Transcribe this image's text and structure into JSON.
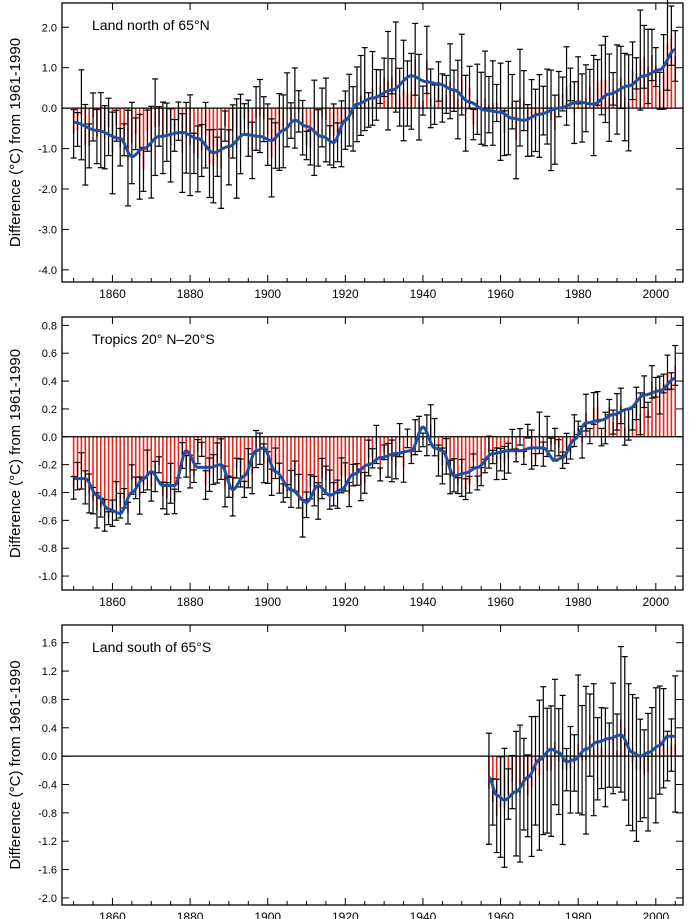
{
  "chart_data": [
    {
      "type": "bar",
      "panel_label": "Land north of 65°N",
      "ylabel": "Difference (°C) from 1961-1990",
      "xlim": [
        1847,
        2007
      ],
      "ylim": [
        -4.3,
        2.6
      ],
      "x_ticks": [
        1860,
        1880,
        1900,
        1920,
        1940,
        1960,
        1980,
        2000
      ],
      "y_ticks": [
        "2.0",
        "1.0",
        "0.0",
        "-1.0",
        "-2.0",
        "-3.0",
        "-4.0"
      ],
      "series": [
        {
          "kind": "annual_bars_with_error",
          "start_year": 1850,
          "end_year": 2005,
          "color": "#e8261c",
          "error_color": "#000000"
        },
        {
          "kind": "smoothed",
          "color": "#1f4fa3",
          "knots": [
            [
              1850,
              -0.35
            ],
            [
              1856,
              -0.55
            ],
            [
              1862,
              -0.75
            ],
            [
              1865,
              -1.2
            ],
            [
              1868,
              -1.0
            ],
            [
              1872,
              -0.7
            ],
            [
              1878,
              -0.6
            ],
            [
              1882,
              -0.75
            ],
            [
              1886,
              -1.1
            ],
            [
              1890,
              -0.95
            ],
            [
              1894,
              -0.65
            ],
            [
              1898,
              -0.7
            ],
            [
              1901,
              -0.8
            ],
            [
              1904,
              -0.55
            ],
            [
              1907,
              -0.3
            ],
            [
              1910,
              -0.45
            ],
            [
              1914,
              -0.7
            ],
            [
              1917,
              -0.85
            ],
            [
              1920,
              -0.3
            ],
            [
              1923,
              0.1
            ],
            [
              1927,
              0.25
            ],
            [
              1932,
              0.45
            ],
            [
              1937,
              0.8
            ],
            [
              1941,
              0.65
            ],
            [
              1944,
              0.6
            ],
            [
              1948,
              0.45
            ],
            [
              1952,
              0.15
            ],
            [
              1956,
              -0.05
            ],
            [
              1960,
              -0.1
            ],
            [
              1963,
              -0.25
            ],
            [
              1966,
              -0.3
            ],
            [
              1970,
              -0.15
            ],
            [
              1975,
              0.0
            ],
            [
              1980,
              0.15
            ],
            [
              1984,
              0.1
            ],
            [
              1988,
              0.35
            ],
            [
              1993,
              0.55
            ],
            [
              1997,
              0.8
            ],
            [
              2001,
              0.95
            ],
            [
              2005,
              1.45
            ]
          ]
        },
        {
          "kind": "zero_line",
          "value": 0
        }
      ]
    },
    {
      "type": "bar",
      "panel_label": "Tropics 20° N–20°S",
      "ylabel": "Difference (°C) from 1961-1990",
      "xlim": [
        1847,
        2007
      ],
      "ylim": [
        -1.1,
        0.86
      ],
      "x_ticks": [
        1860,
        1880,
        1900,
        1920,
        1940,
        1960,
        1980,
        2000
      ],
      "y_ticks": [
        "0.8",
        "0.6",
        "0.4",
        "0.2",
        "0.0",
        "-0.2",
        "-0.4",
        "-0.6",
        "-0.8",
        "-1.0"
      ],
      "series": [
        {
          "kind": "annual_bars_with_error",
          "start_year": 1850,
          "end_year": 2005,
          "color": "#e8261c",
          "error_color": "#000000"
        },
        {
          "kind": "smoothed",
          "color": "#1f4fa3",
          "knots": [
            [
              1850,
              -0.3
            ],
            [
              1853,
              -0.3
            ],
            [
              1856,
              -0.42
            ],
            [
              1859,
              -0.52
            ],
            [
              1862,
              -0.55
            ],
            [
              1865,
              -0.4
            ],
            [
              1868,
              -0.3
            ],
            [
              1870,
              -0.25
            ],
            [
              1873,
              -0.35
            ],
            [
              1876,
              -0.35
            ],
            [
              1879,
              -0.1
            ],
            [
              1882,
              -0.22
            ],
            [
              1885,
              -0.22
            ],
            [
              1888,
              -0.2
            ],
            [
              1891,
              -0.38
            ],
            [
              1894,
              -0.28
            ],
            [
              1897,
              -0.1
            ],
            [
              1899,
              -0.08
            ],
            [
              1902,
              -0.25
            ],
            [
              1906,
              -0.38
            ],
            [
              1910,
              -0.47
            ],
            [
              1913,
              -0.35
            ],
            [
              1916,
              -0.42
            ],
            [
              1919,
              -0.38
            ],
            [
              1922,
              -0.27
            ],
            [
              1926,
              -0.2
            ],
            [
              1929,
              -0.15
            ],
            [
              1933,
              -0.12
            ],
            [
              1937,
              -0.1
            ],
            [
              1940,
              0.07
            ],
            [
              1943,
              -0.08
            ],
            [
              1945,
              -0.1
            ],
            [
              1948,
              -0.28
            ],
            [
              1951,
              -0.26
            ],
            [
              1954,
              -0.22
            ],
            [
              1958,
              -0.12
            ],
            [
              1962,
              -0.1
            ],
            [
              1965,
              -0.1
            ],
            [
              1968,
              -0.08
            ],
            [
              1971,
              -0.08
            ],
            [
              1974,
              -0.17
            ],
            [
              1976,
              -0.15
            ],
            [
              1979,
              -0.02
            ],
            [
              1982,
              0.1
            ],
            [
              1986,
              0.12
            ],
            [
              1989,
              0.16
            ],
            [
              1993,
              0.2
            ],
            [
              1997,
              0.3
            ],
            [
              2001,
              0.33
            ],
            [
              2005,
              0.42
            ]
          ]
        },
        {
          "kind": "zero_line",
          "value": 0
        }
      ]
    },
    {
      "type": "bar",
      "panel_label": "Land south of 65°S",
      "ylabel": "Difference (°C) from 1961-1990",
      "xlim": [
        1847,
        2007
      ],
      "ylim": [
        -2.1,
        1.85
      ],
      "x_ticks": [
        1860,
        1880,
        1900,
        1920,
        1940,
        1960,
        1980,
        2000
      ],
      "y_ticks": [
        "1.6",
        "1.2",
        "0.8",
        "0.4",
        "0.0",
        "-0.4",
        "-0.8",
        "-1.2",
        "-1.6",
        "-2.0"
      ],
      "series": [
        {
          "kind": "annual_bars_with_error",
          "start_year": 1957,
          "end_year": 2005,
          "color": "#e8261c",
          "error_color": "#000000"
        },
        {
          "kind": "smoothed",
          "color": "#1f4fa3",
          "knots": [
            [
              1957,
              -0.3
            ],
            [
              1959,
              -0.55
            ],
            [
              1961,
              -0.62
            ],
            [
              1964,
              -0.5
            ],
            [
              1967,
              -0.3
            ],
            [
              1970,
              -0.05
            ],
            [
              1973,
              0.1
            ],
            [
              1975,
              0.05
            ],
            [
              1977,
              -0.08
            ],
            [
              1979,
              -0.05
            ],
            [
              1982,
              0.1
            ],
            [
              1985,
              0.2
            ],
            [
              1988,
              0.25
            ],
            [
              1991,
              0.3
            ],
            [
              1994,
              0.05
            ],
            [
              1996,
              0.0
            ],
            [
              1998,
              0.05
            ],
            [
              2001,
              0.15
            ],
            [
              2003,
              0.28
            ],
            [
              2005,
              0.28
            ]
          ]
        },
        {
          "kind": "zero_line",
          "value": 0
        }
      ]
    }
  ]
}
